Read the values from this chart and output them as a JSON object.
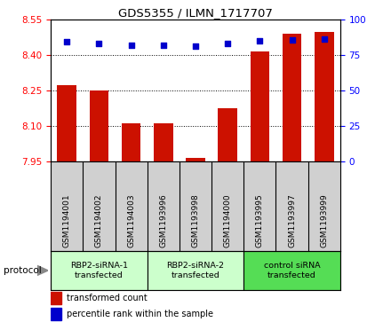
{
  "title": "GDS5355 / ILMN_1717707",
  "samples": [
    "GSM1194001",
    "GSM1194002",
    "GSM1194003",
    "GSM1193996",
    "GSM1193998",
    "GSM1194000",
    "GSM1193995",
    "GSM1193997",
    "GSM1193999"
  ],
  "bar_values": [
    8.27,
    8.25,
    8.11,
    8.11,
    7.965,
    8.175,
    8.415,
    8.49,
    8.495
  ],
  "percentile_values": [
    84,
    83,
    82,
    82,
    81,
    83,
    85,
    85.5,
    86
  ],
  "ylim_left": [
    7.95,
    8.55
  ],
  "ylim_right": [
    0,
    100
  ],
  "yticks_left": [
    7.95,
    8.1,
    8.25,
    8.4,
    8.55
  ],
  "yticks_right": [
    0,
    25,
    50,
    75,
    100
  ],
  "bar_color": "#cc1100",
  "dot_color": "#0000cc",
  "groups": [
    {
      "label": "RBP2-siRNA-1\ntransfected",
      "start": 0,
      "end": 3
    },
    {
      "label": "RBP2-siRNA-2\ntransfected",
      "start": 3,
      "end": 6
    },
    {
      "label": "control siRNA\ntransfected",
      "start": 6,
      "end": 9
    }
  ],
  "protocol_label": "protocol",
  "legend_bar_label": "transformed count",
  "legend_dot_label": "percentile rank within the sample",
  "background_color": "#ffffff",
  "label_area_color": "#d0d0d0",
  "group_light_color": "#ccffcc",
  "group_dark_color": "#55dd55"
}
